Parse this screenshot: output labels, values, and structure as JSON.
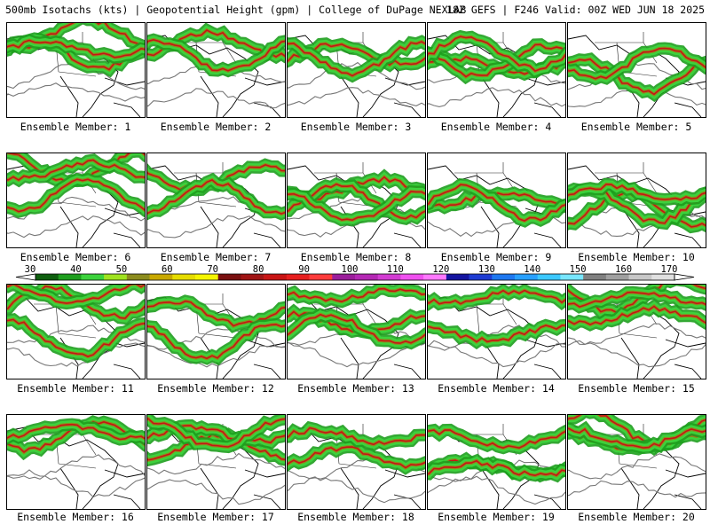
{
  "header": {
    "left": "500mb Isotachs (kts) | Geopotential Height (gpm) | College of DuPage NEXLAB",
    "right": "18Z GEFS | F246 Valid: 00Z WED JUN 18 2025"
  },
  "members": [
    "Ensemble Member: 1",
    "Ensemble Member: 2",
    "Ensemble Member: 3",
    "Ensemble Member: 4",
    "Ensemble Member: 5",
    "Ensemble Member: 6",
    "Ensemble Member: 7",
    "Ensemble Member: 8",
    "Ensemble Member: 9",
    "Ensemble Member: 10",
    "Ensemble Member: 11",
    "Ensemble Member: 12",
    "Ensemble Member: 13",
    "Ensemble Member: 14",
    "Ensemble Member: 15",
    "Ensemble Member: 16",
    "Ensemble Member: 17",
    "Ensemble Member: 18",
    "Ensemble Member: 19",
    "Ensemble Member: 20"
  ],
  "colorbar": {
    "ticks": [
      "30",
      "40",
      "50",
      "60",
      "70",
      "80",
      "90",
      "100",
      "110",
      "120",
      "130",
      "140",
      "150",
      "160",
      "170"
    ],
    "colors": [
      "#0f5f0f",
      "#1e9e1e",
      "#3cd23c",
      "#9fe31f",
      "#8c8c1e",
      "#c8a800",
      "#e6dc00",
      "#f5f500",
      "#7a1010",
      "#a01414",
      "#c81414",
      "#e61e1e",
      "#ff3c3c",
      "#9b1e9b",
      "#b428b4",
      "#d23cd2",
      "#f050f0",
      "#ff78ff",
      "#1414a0",
      "#1e3cd2",
      "#1e78f0",
      "#28a0ff",
      "#3cc8ff",
      "#78e6ff",
      "#808080",
      "#a0a0a0",
      "#c8c8c8",
      "#e0e0e0"
    ]
  }
}
